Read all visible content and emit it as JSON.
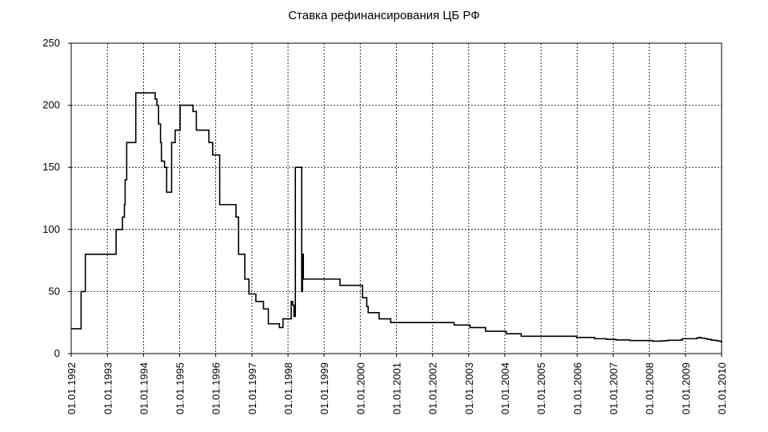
{
  "chart_data": {
    "type": "line",
    "title": "Ставка рефинансирования ЦБ РФ",
    "xlabel": "",
    "ylabel": "",
    "ylim": [
      0,
      250
    ],
    "yticks": [
      "0",
      "50",
      "100",
      "150",
      "200",
      "250"
    ],
    "xticks": [
      "01.01.1992",
      "01.01.1993",
      "01.01.1994",
      "01.01.1995",
      "01.01.1996",
      "01.01.1997",
      "01.01.1998",
      "01.01.1999",
      "01.01.2000",
      "01.01.2001",
      "01.01.2002",
      "01.01.2003",
      "01.01.2004",
      "01.01.2005",
      "01.01.2006",
      "01.01.2007",
      "01.01.2008",
      "01.01.2009",
      "01.01.2010"
    ],
    "grid": true,
    "series": [
      {
        "x": [
          "1992-01-01",
          "1992-04-10",
          "1992-05-23",
          "1993-03-30",
          "1993-06-02",
          "1993-06-22",
          "1993-06-29",
          "1993-07-15",
          "1993-10-15",
          "1994-04-29",
          "1994-05-17",
          "1994-06-02",
          "1994-06-22",
          "1994-07-01",
          "1994-08-01",
          "1994-08-23",
          "1994-10-12",
          "1994-11-17",
          "1995-01-06",
          "1995-05-16",
          "1995-06-19",
          "1995-10-24",
          "1995-12-01",
          "1996-02-10",
          "1996-07-24",
          "1996-08-19",
          "1996-10-21",
          "1996-12-02",
          "1997-02-10",
          "1997-04-28",
          "1997-06-16",
          "1997-10-06",
          "1997-11-11",
          "1998-02-02",
          "1998-02-17",
          "1998-03-02",
          "1998-03-16",
          "1998-05-19",
          "1998-05-27",
          "1998-06-05",
          "1998-06-29",
          "1998-07-24",
          "1999-06-10",
          "2000-01-24",
          "2000-03-07",
          "2000-03-21",
          "2000-07-10",
          "2000-11-04",
          "2002-04-09",
          "2002-08-07",
          "2003-01-15",
          "2003-06-21",
          "2004-01-15",
          "2004-06-15",
          "2005-12-26",
          "2006-06-26",
          "2006-10-23",
          "2007-01-29",
          "2007-06-19",
          "2008-02-04",
          "2008-04-29",
          "2008-06-10",
          "2008-07-14",
          "2008-11-12",
          "2008-12-01",
          "2009-04-24",
          "2009-05-14",
          "2009-06-05",
          "2009-07-13",
          "2009-08-10",
          "2009-09-15",
          "2009-09-30",
          "2009-10-30",
          "2009-11-25",
          "2009-12-28",
          "2010-01-01"
        ],
        "values": [
          20,
          50,
          80,
          100,
          110,
          120,
          140,
          170,
          210,
          205,
          200,
          185,
          170,
          155,
          150,
          130,
          170,
          180,
          200,
          195,
          180,
          170,
          160,
          120,
          110,
          80,
          60,
          48,
          42,
          36,
          24,
          21,
          28,
          42,
          39,
          30,
          150,
          50,
          80,
          60,
          60,
          60,
          55,
          45,
          38,
          33,
          28,
          25,
          25,
          23,
          21,
          18,
          16,
          14,
          13,
          12,
          11.5,
          11,
          10.5,
          10,
          10.25,
          10.5,
          10.75,
          11,
          12,
          12.5,
          13,
          12.5,
          12,
          11.5,
          11,
          10.75,
          10.5,
          10,
          9.5,
          9
        ]
      }
    ]
  }
}
